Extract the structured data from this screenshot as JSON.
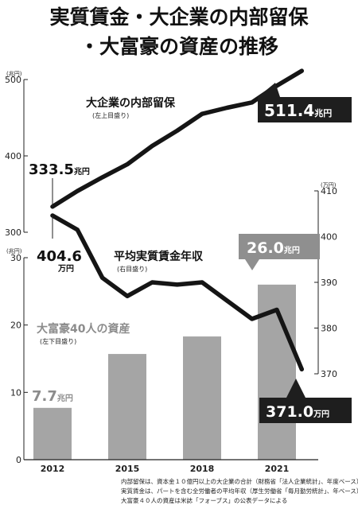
{
  "title_line1": "実質賃金・大企業の内部留保",
  "title_line2": "・大富豪の資産の推移",
  "colors": {
    "line": "#151515",
    "bar": "#a5a5a5",
    "bar_label": "#8c8c8c",
    "callout_dark": "#1e1e1e",
    "callout_gray": "#8f8f8f"
  },
  "chart_data": [
    {
      "type": "line",
      "name": "大企業の内部留保",
      "subtitle": "(左上目盛り)",
      "unit": "(兆円)",
      "x": [
        2012,
        2013,
        2014,
        2015,
        2016,
        2017,
        2018,
        2019,
        2020,
        2021,
        2022
      ],
      "values": [
        333.5,
        354,
        372,
        389,
        413,
        433,
        455,
        463,
        470,
        492,
        511.4
      ],
      "ylim": [
        300,
        500
      ],
      "yticks": [
        "300",
        "400",
        "500"
      ],
      "start_label": "333.5",
      "start_unit": "兆円",
      "end_label": "511.4",
      "end_unit": "兆円"
    },
    {
      "type": "line",
      "name": "平均実質賃金年収",
      "subtitle": "(右目盛り)",
      "unit": "(万円)",
      "x": [
        2012,
        2013,
        2014,
        2015,
        2016,
        2017,
        2018,
        2019,
        2020,
        2021,
        2022
      ],
      "values": [
        404.6,
        401.5,
        391,
        387,
        390,
        389.5,
        390,
        386,
        382,
        384,
        371.0
      ],
      "ylim": [
        370,
        410
      ],
      "yticks": [
        "370",
        "380",
        "390",
        "400",
        "410"
      ],
      "start_label": "404.6",
      "start_unit": "万円",
      "end_label": "371.0",
      "end_unit": "万円"
    },
    {
      "type": "bar",
      "name": "大富豪40人の資産",
      "subtitle": "(左下目盛り)",
      "unit": "(兆円)",
      "categories": [
        "2012",
        "2015",
        "2018",
        "2021"
      ],
      "values": [
        7.7,
        15.7,
        18.3,
        26.0
      ],
      "ylim": [
        0,
        30
      ],
      "yticks": [
        "0",
        "10",
        "20",
        "30"
      ],
      "first_label": "7.7",
      "first_unit": "兆円",
      "last_label": "26.0",
      "last_unit": "兆円"
    }
  ],
  "notes": [
    "内部留保は、資本金１０億円以上の大企業の合計（財務省「法人企業統計」、年度ベース）",
    "実質賃金は、パートを含む全労働者の平均年収（厚生労働省「毎月勤労統計」、年ベース）",
    "大富豪４０人の資産は米誌「フォーブス」の公表データによる"
  ]
}
